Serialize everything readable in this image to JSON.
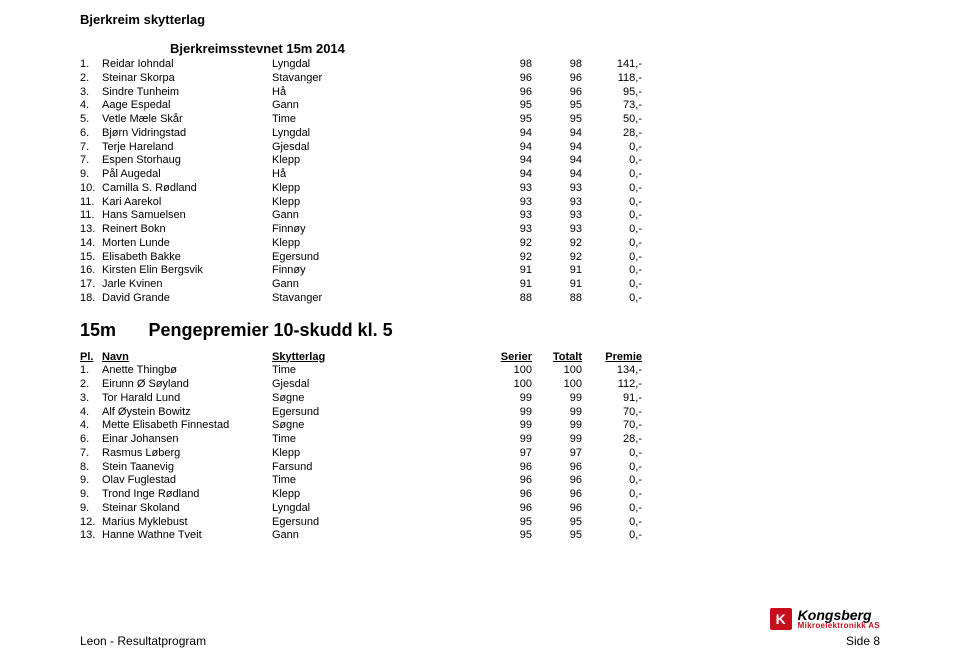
{
  "org": "Bjerkreim skytterlag",
  "event": "Bjerkreimsstevnet 15m 2014",
  "table1": [
    {
      "pl": "1.",
      "name": "Reidar Iohndal",
      "club": "Lyngdal",
      "s": "98",
      "t": "98",
      "p": "141,-"
    },
    {
      "pl": "2.",
      "name": "Steinar Skorpa",
      "club": "Stavanger",
      "s": "96",
      "t": "96",
      "p": "118,-"
    },
    {
      "pl": "3.",
      "name": "Sindre Tunheim",
      "club": "Hå",
      "s": "96",
      "t": "96",
      "p": "95,-"
    },
    {
      "pl": "4.",
      "name": "Aage Espedal",
      "club": "Gann",
      "s": "95",
      "t": "95",
      "p": "73,-"
    },
    {
      "pl": "5.",
      "name": "Vetle Mæle Skår",
      "club": "Time",
      "s": "95",
      "t": "95",
      "p": "50,-"
    },
    {
      "pl": "6.",
      "name": "Bjørn Vidringstad",
      "club": "Lyngdal",
      "s": "94",
      "t": "94",
      "p": "28,-"
    },
    {
      "pl": "7.",
      "name": "Terje Hareland",
      "club": "Gjesdal",
      "s": "94",
      "t": "94",
      "p": "0,-"
    },
    {
      "pl": "7.",
      "name": "Espen Storhaug",
      "club": "Klepp",
      "s": "94",
      "t": "94",
      "p": "0,-"
    },
    {
      "pl": "9.",
      "name": "Pål Augedal",
      "club": "Hå",
      "s": "94",
      "t": "94",
      "p": "0,-"
    },
    {
      "pl": "10.",
      "name": "Camilla S. Rødland",
      "club": "Klepp",
      "s": "93",
      "t": "93",
      "p": "0,-"
    },
    {
      "pl": "11.",
      "name": "Kari Aarekol",
      "club": "Klepp",
      "s": "93",
      "t": "93",
      "p": "0,-"
    },
    {
      "pl": "11.",
      "name": "Hans Samuelsen",
      "club": "Gann",
      "s": "93",
      "t": "93",
      "p": "0,-"
    },
    {
      "pl": "13.",
      "name": "Reinert Bokn",
      "club": "Finnøy",
      "s": "93",
      "t": "93",
      "p": "0,-"
    },
    {
      "pl": "14.",
      "name": "Morten Lunde",
      "club": "Klepp",
      "s": "92",
      "t": "92",
      "p": "0,-"
    },
    {
      "pl": "15.",
      "name": "Elisabeth Bakke",
      "club": "Egersund",
      "s": "92",
      "t": "92",
      "p": "0,-"
    },
    {
      "pl": "16.",
      "name": "Kirsten Elin Bergsvik",
      "club": "Finnøy",
      "s": "91",
      "t": "91",
      "p": "0,-"
    },
    {
      "pl": "17.",
      "name": "Jarle Kvinen",
      "club": "Gann",
      "s": "91",
      "t": "91",
      "p": "0,-"
    },
    {
      "pl": "18.",
      "name": "David Grande",
      "club": "Stavanger",
      "s": "88",
      "t": "88",
      "p": "0,-"
    }
  ],
  "section2": {
    "size": "15m",
    "title": "Pengepremier 10-skudd kl. 5"
  },
  "header2": {
    "pl": "Pl.",
    "name": "Navn",
    "club": "Skytterlag",
    "s": "Serier",
    "t": "Totalt",
    "p": "Premie"
  },
  "table2": [
    {
      "pl": "1.",
      "name": "Anette Thingbø",
      "club": "Time",
      "s": "100",
      "t": "100",
      "p": "134,-"
    },
    {
      "pl": "2.",
      "name": "Eirunn Ø Søyland",
      "club": "Gjesdal",
      "s": "100",
      "t": "100",
      "p": "112,-"
    },
    {
      "pl": "3.",
      "name": "Tor Harald Lund",
      "club": "Søgne",
      "s": "99",
      "t": "99",
      "p": "91,-"
    },
    {
      "pl": "4.",
      "name": "Alf Øystein Bowitz",
      "club": "Egersund",
      "s": "99",
      "t": "99",
      "p": "70,-"
    },
    {
      "pl": "4.",
      "name": "Mette Elisabeth Finnestad",
      "club": "Søgne",
      "s": "99",
      "t": "99",
      "p": "70,-"
    },
    {
      "pl": "6.",
      "name": "Einar Johansen",
      "club": "Time",
      "s": "99",
      "t": "99",
      "p": "28,-"
    },
    {
      "pl": "7.",
      "name": "Rasmus Løberg",
      "club": "Klepp",
      "s": "97",
      "t": "97",
      "p": "0,-"
    },
    {
      "pl": "8.",
      "name": "Stein Taanevig",
      "club": "Farsund",
      "s": "96",
      "t": "96",
      "p": "0,-"
    },
    {
      "pl": "9.",
      "name": "Olav Fuglestad",
      "club": "Time",
      "s": "96",
      "t": "96",
      "p": "0,-"
    },
    {
      "pl": "9.",
      "name": "Trond Inge Rødland",
      "club": "Klepp",
      "s": "96",
      "t": "96",
      "p": "0,-"
    },
    {
      "pl": "9.",
      "name": "Steinar Skoland",
      "club": "Lyngdal",
      "s": "96",
      "t": "96",
      "p": "0,-"
    },
    {
      "pl": "12.",
      "name": "Marius Myklebust",
      "club": "Egersund",
      "s": "95",
      "t": "95",
      "p": "0,-"
    },
    {
      "pl": "13.",
      "name": "Hanne Wathne Tveit",
      "club": "Gann",
      "s": "95",
      "t": "95",
      "p": "0,-"
    }
  ],
  "logo": {
    "k": "K",
    "brand": "Kongsberg",
    "sub": "Mikroelektronikk AS"
  },
  "footer": {
    "left": "Leon - Resultatprogram",
    "right": "Side 8"
  }
}
